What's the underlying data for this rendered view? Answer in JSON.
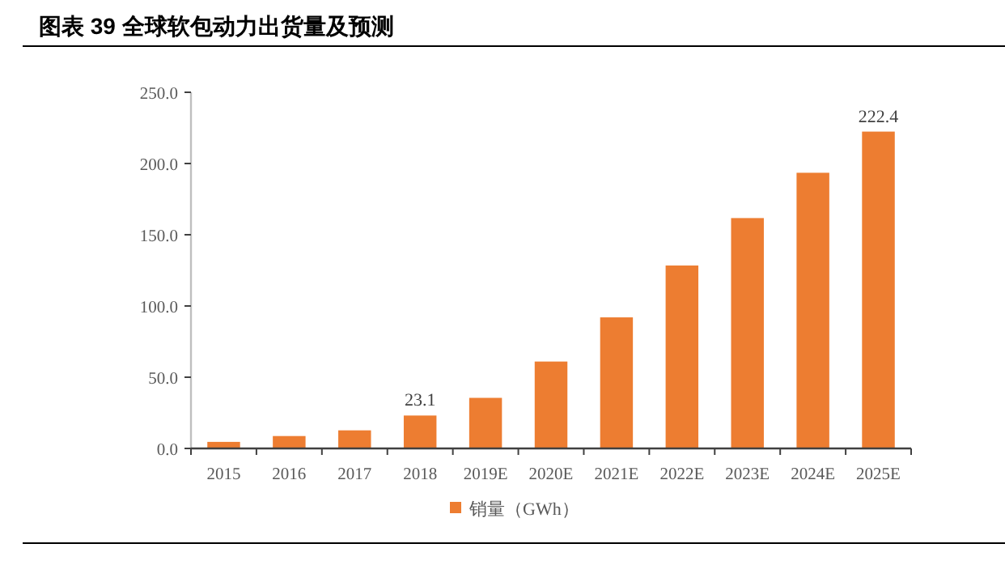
{
  "chart_data": {
    "type": "bar",
    "title": "图表 39 全球软包动力出货量及预测",
    "categories": [
      "2015",
      "2016",
      "2017",
      "2018",
      "2019E",
      "2020E",
      "2021E",
      "2022E",
      "2023E",
      "2024E",
      "2025E"
    ],
    "series": [
      {
        "name": "销量（GWh）",
        "color": "#ed7d31",
        "values": [
          4.6,
          8.7,
          12.7,
          23.1,
          35.5,
          61.0,
          92.0,
          128.4,
          161.7,
          193.5,
          222.4
        ],
        "value_labels": [
          null,
          null,
          null,
          "23.1",
          null,
          null,
          null,
          null,
          null,
          null,
          "222.4"
        ]
      }
    ],
    "ylim": [
      0,
      250
    ],
    "yticks": [
      {
        "value": 0,
        "label": "0.0"
      },
      {
        "value": 50,
        "label": "50.0"
      },
      {
        "value": 100,
        "label": "100.0"
      },
      {
        "value": 150,
        "label": "150.0"
      },
      {
        "value": 200,
        "label": "200.0"
      },
      {
        "value": 250,
        "label": "250.0"
      }
    ],
    "grid": false,
    "legend": "bottom"
  }
}
